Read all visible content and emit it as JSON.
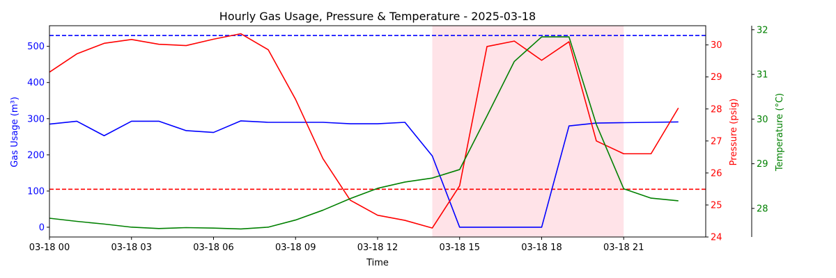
{
  "chart_data": {
    "type": "line",
    "title": "Hourly Gas Usage, Pressure & Temperature - 2025-03-18",
    "xlabel": "Time",
    "x": [
      0,
      1,
      2,
      3,
      4,
      5,
      6,
      7,
      8,
      9,
      10,
      11,
      12,
      13,
      14,
      15,
      16,
      17,
      18,
      19,
      20,
      21,
      22,
      23
    ],
    "x_ticks": [
      0,
      3,
      6,
      9,
      12,
      15,
      18,
      21
    ],
    "x_tick_labels": [
      "03-18 00",
      "03-18 03",
      "03-18 06",
      "03-18 09",
      "03-18 12",
      "03-18 15",
      "03-18 18",
      "03-18 21"
    ],
    "xlim": [
      0,
      24
    ],
    "shaded_region": {
      "x_start": 14,
      "x_end": 21,
      "color": "#ffc0cb"
    },
    "axes": {
      "gas": {
        "label": "Gas Usage (m³)",
        "color": "#0000ff",
        "ylim": [
          -27,
          557
        ],
        "ticks": [
          0,
          100,
          200,
          300,
          400,
          500
        ],
        "tick_labels": [
          "0",
          "100",
          "200",
          "300",
          "400",
          "500"
        ]
      },
      "pressure": {
        "label": "Pressure (psig)",
        "color": "#ff0000",
        "ylim": [
          24.0,
          30.6
        ],
        "ticks": [
          24,
          25,
          26,
          27,
          28,
          29,
          30
        ],
        "tick_labels": [
          "24",
          "25",
          "26",
          "27",
          "28",
          "29",
          "30"
        ]
      },
      "temperature": {
        "label": "Temperature (°C)",
        "color": "#008000",
        "ylim": [
          27.36,
          32.09
        ],
        "ticks": [
          28,
          29,
          30,
          31,
          32
        ],
        "tick_labels": [
          "28",
          "29",
          "30",
          "31",
          "32"
        ]
      }
    },
    "reference_lines": [
      {
        "axis": "gas",
        "value": 530,
        "color": "#0000ff",
        "style": "dashed"
      },
      {
        "axis": "gas",
        "value": 105,
        "color": "#ff0000",
        "style": "dashed"
      }
    ],
    "series": [
      {
        "axis": "gas",
        "color": "#0000ff",
        "values": [
          285,
          293,
          253,
          293,
          293,
          267,
          262,
          294,
          290,
          290,
          290,
          286,
          286,
          290,
          197,
          0,
          0,
          0,
          0,
          280,
          288,
          289,
          290,
          291
        ]
      },
      {
        "axis": "pressure",
        "color": "#ff0000",
        "values": [
          29.15,
          29.72,
          30.05,
          30.17,
          30.02,
          29.98,
          30.18,
          30.35,
          29.85,
          28.3,
          26.45,
          25.15,
          24.68,
          24.52,
          24.28,
          25.6,
          29.95,
          30.12,
          29.52,
          30.1,
          27.0,
          26.6,
          26.6,
          28.03
        ]
      },
      {
        "axis": "temperature",
        "color": "#008000",
        "values": [
          27.78,
          27.71,
          27.65,
          27.58,
          27.55,
          27.57,
          27.56,
          27.54,
          27.58,
          27.74,
          27.96,
          28.22,
          28.45,
          28.59,
          28.68,
          28.87,
          30.07,
          31.29,
          31.84,
          31.84,
          29.88,
          28.44,
          28.23,
          28.17
        ]
      }
    ]
  }
}
